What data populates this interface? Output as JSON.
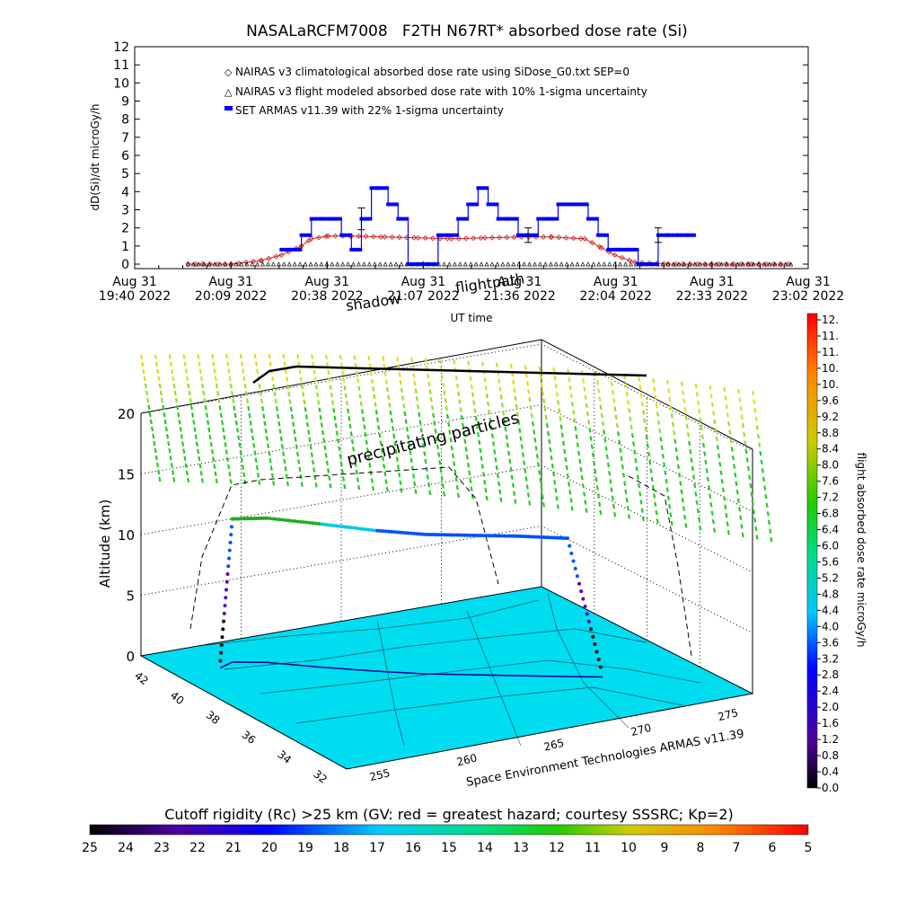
{
  "chart_data": [
    {
      "type": "line",
      "title": "NASALaRCFM7008   F2TH N67RT* absorbed dose rate (Si)",
      "xlabel": "UT time",
      "ylabel": "dD(Si)/dt microGy/h",
      "ylim": [
        0,
        12
      ],
      "yticks": [
        "0",
        "1",
        "2",
        "3",
        "4",
        "5",
        "6",
        "7",
        "8",
        "9",
        "10",
        "11",
        "12"
      ],
      "xticks": [
        {
          "date": "Aug 31",
          "time": "19:40 2022"
        },
        {
          "date": "Aug 31",
          "time": "20:09 2022"
        },
        {
          "date": "Aug 31",
          "time": "20:38 2022"
        },
        {
          "date": "Aug 31",
          "time": "21:07 2022"
        },
        {
          "date": "Aug 31",
          "time": "21:36 2022"
        },
        {
          "date": "Aug 31",
          "time": "22:04 2022"
        },
        {
          "date": "Aug 31",
          "time": "22:33 2022"
        },
        {
          "date": "Aug 31",
          "time": "23:02 2022"
        }
      ],
      "x_range": [
        "19:40",
        "23:02"
      ],
      "legend_placement": "top-left",
      "series": [
        {
          "name": "NAIRAS v3 climatological absorbed dose rate using SiDose_G0.txt SEP=0",
          "color": "#cc2222",
          "marker": "diamond",
          "x": [
            "19:56",
            "20:09",
            "20:18",
            "20:24",
            "20:30",
            "20:33",
            "20:38",
            "20:45",
            "20:55",
            "21:05",
            "21:15",
            "21:25",
            "21:36",
            "21:45",
            "21:55",
            "22:00",
            "22:04",
            "22:10",
            "22:20",
            "22:33",
            "22:45",
            "22:57"
          ],
          "values": [
            0,
            0,
            0.2,
            0.5,
            1.0,
            1.4,
            1.55,
            1.55,
            1.5,
            1.45,
            1.4,
            1.45,
            1.5,
            1.5,
            1.4,
            0.9,
            0.5,
            0.1,
            0,
            0,
            0,
            0
          ]
        },
        {
          "name": "NAIRAS v3 flight modeled absorbed dose rate with 10% 1-sigma uncertainty",
          "color": "#000000",
          "marker": "triangle",
          "x": [
            "19:56",
            "20:09",
            "20:38",
            "21:07",
            "21:36",
            "22:04",
            "22:33",
            "22:57"
          ],
          "values": [
            0,
            0,
            0,
            0,
            0,
            0,
            0,
            0
          ]
        },
        {
          "name": "SET ARMAS v11.39 with 22% 1-sigma uncertainty",
          "color": "#0000ff",
          "marker": "square",
          "x": [
            "20:24",
            "20:27",
            "20:30",
            "20:33",
            "20:36",
            "20:39",
            "20:42",
            "20:45",
            "20:48",
            "20:51",
            "20:53",
            "20:56",
            "20:59",
            "21:02",
            "21:05",
            "21:08",
            "21:11",
            "21:14",
            "21:17",
            "21:20",
            "21:23",
            "21:26",
            "21:29",
            "21:32",
            "21:35",
            "21:38",
            "21:41",
            "21:44",
            "21:47",
            "21:50",
            "21:53",
            "21:56",
            "21:59",
            "22:02",
            "22:05",
            "22:08",
            "22:11",
            "22:14",
            "22:17",
            "22:20",
            "22:23",
            "22:26"
          ],
          "values": [
            0.8,
            0.8,
            1.6,
            2.5,
            2.5,
            2.5,
            1.6,
            0.8,
            2.5,
            4.2,
            4.2,
            3.3,
            2.5,
            0,
            0,
            0,
            1.6,
            1.6,
            2.5,
            3.3,
            4.2,
            3.3,
            2.5,
            2.5,
            1.6,
            1.6,
            2.5,
            2.5,
            3.3,
            3.3,
            3.3,
            2.5,
            1.6,
            0.8,
            0.8,
            0.8,
            0,
            0,
            1.6,
            1.6,
            1.6,
            1.6
          ]
        }
      ],
      "error_bars": [
        {
          "x": "20:48",
          "value": 2.5,
          "low": 1.9,
          "high": 3.1
        },
        {
          "x": "21:38",
          "value": 1.6,
          "low": 1.2,
          "high": 2.0
        },
        {
          "x": "22:17",
          "value": 1.6,
          "low": 1.2,
          "high": 2.0
        }
      ]
    },
    {
      "type": "scatter",
      "title": "",
      "zlabel": "Altitude (km)",
      "zticks": [
        "0",
        "5",
        "10",
        "15",
        "20"
      ],
      "lat_ticks": [
        "32",
        "34",
        "36",
        "38",
        "40",
        "42"
      ],
      "lon_ticks": [
        "255",
        "260",
        "265",
        "270",
        "275"
      ],
      "annotations": {
        "precipitating": "precipitating particles",
        "shadow": "shadow",
        "flightpath": "flightpath"
      },
      "credit": "Space Environment Technologies ARMAS v11.39",
      "colorbar": {
        "label": "flight absorbed dose rate microGy/h",
        "ticks": [
          "0.0",
          "0.4",
          "0.8",
          "1.2",
          "1.6",
          "2.0",
          "2.4",
          "2.8",
          "3.2",
          "3.6",
          "4.0",
          "4.4",
          "4.8",
          "5.2",
          "5.6",
          "6.0",
          "6.4",
          "6.8",
          "7.2",
          "7.6",
          "8.0",
          "8.4",
          "8.8",
          "9.2",
          "9.6",
          "10.",
          "10.",
          "11.",
          "11.",
          "12."
        ]
      },
      "flight_track": {
        "lon": [
          255.5,
          256.5,
          258,
          260,
          262,
          264,
          266,
          268,
          270,
          271.5
        ],
        "lat": [
          40.5,
          40.8,
          40.3,
          39.2,
          38.2,
          37.3,
          36.6,
          35.9,
          35.2,
          34.7
        ],
        "alt": [
          0.6,
          11.8,
          11.9,
          11.8,
          11.6,
          11.5,
          11.5,
          11.5,
          11.4,
          0.2
        ]
      },
      "dose_cloud_range": [
        5.5,
        9.5
      ]
    }
  ],
  "bottom_bar": {
    "title": "Cutoff rigidity (Rc) >25 km (GV: red = greatest hazard; courtesy SSSRC; Kp=2)",
    "ticks": [
      "25",
      "24",
      "23",
      "22",
      "21",
      "20",
      "19",
      "18",
      "17",
      "16",
      "15",
      "14",
      "13",
      "12",
      "11",
      "10",
      "9",
      "8",
      "7",
      "6",
      "5"
    ]
  },
  "colors": {
    "map_fill": "#00dcf0",
    "cloud_green": "#22cc22",
    "cloud_yellow": "#dddd22",
    "dose_series": "#0000ff",
    "climatology": "#cc2222"
  }
}
